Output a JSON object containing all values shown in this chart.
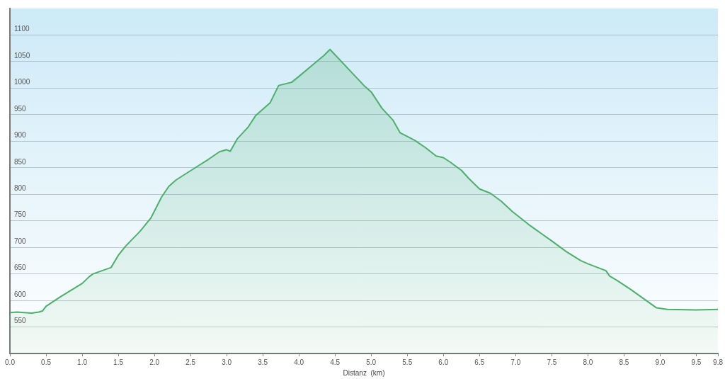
{
  "chart_data": {
    "type": "area",
    "xlabel": "Distanz  (km)",
    "x": [
      0,
      0.1,
      0.3,
      0.4,
      0.45,
      0.5,
      0.7,
      1.0,
      1.1,
      1.15,
      1.4,
      1.5,
      1.6,
      1.8,
      1.95,
      2.1,
      2.2,
      2.3,
      2.45,
      2.6,
      2.75,
      2.9,
      3.0,
      3.05,
      3.15,
      3.3,
      3.4,
      3.6,
      3.72,
      3.9,
      4.0,
      4.2,
      4.35,
      4.43,
      4.9,
      5.0,
      5.15,
      5.3,
      5.4,
      5.6,
      5.75,
      5.9,
      6.0,
      6.1,
      6.25,
      6.35,
      6.5,
      6.65,
      6.8,
      6.95,
      7.2,
      7.5,
      7.7,
      7.9,
      8.0,
      8.25,
      8.3,
      8.4,
      8.6,
      8.95,
      9.0,
      9.1,
      9.5,
      9.8
    ],
    "series": [
      {
        "color": "#4caf6a",
        "values": [
          577,
          578,
          576,
          578,
          580,
          589,
          607,
          632,
          645,
          650,
          662,
          685,
          702,
          730,
          755,
          795,
          815,
          827,
          840,
          853,
          866,
          880,
          884,
          881,
          905,
          927,
          948,
          972,
          1005,
          1011,
          1022,
          1045,
          1062,
          1073,
          1005,
          993,
          962,
          940,
          916,
          902,
          888,
          872,
          869,
          860,
          845,
          830,
          810,
          802,
          787,
          768,
          741,
          712,
          692,
          675,
          669,
          656,
          646,
          638,
          620,
          586,
          585,
          583,
          582,
          583
        ]
      }
    ],
    "xlim": [
      0,
      9.8
    ],
    "xticks": [
      {
        "value": 0,
        "label": "0.0"
      },
      {
        "value": 0.5,
        "label": "0.5"
      },
      {
        "value": 1,
        "label": "1.0"
      },
      {
        "value": 1.5,
        "label": "1.5"
      },
      {
        "value": 2,
        "label": "2.0"
      },
      {
        "value": 2.5,
        "label": "2.5"
      },
      {
        "value": 3,
        "label": "3.0"
      },
      {
        "value": 3.5,
        "label": "3.5"
      },
      {
        "value": 4,
        "label": "4.0"
      },
      {
        "value": 4.5,
        "label": "4.5"
      },
      {
        "value": 5,
        "label": "5.0"
      },
      {
        "value": 5.5,
        "label": "5.5"
      },
      {
        "value": 6,
        "label": "6.0"
      },
      {
        "value": 6.5,
        "label": "6.5"
      },
      {
        "value": 7,
        "label": "7.0"
      },
      {
        "value": 7.5,
        "label": "7.5"
      },
      {
        "value": 8,
        "label": "8.0"
      },
      {
        "value": 8.5,
        "label": "8.5"
      },
      {
        "value": 9,
        "label": "9.0"
      },
      {
        "value": 9.5,
        "label": "9.5"
      },
      {
        "value": 9.8,
        "label": "9.8"
      }
    ],
    "ylim": [
      500,
      1150
    ],
    "yticks": [
      550,
      600,
      650,
      700,
      750,
      800,
      850,
      900,
      950,
      1000,
      1050,
      1100
    ],
    "grid": "y",
    "legend": false,
    "marker": "none",
    "line_style": "solid"
  }
}
